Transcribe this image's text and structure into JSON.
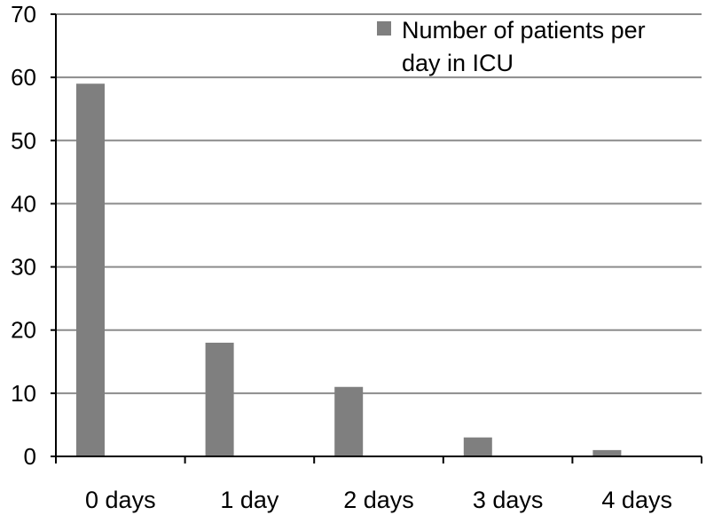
{
  "chart_data": {
    "type": "bar",
    "categories": [
      "0 days",
      "1 day",
      "2 days",
      "3 days",
      "4 days"
    ],
    "series": [
      {
        "name": "Number of patients per day in ICU",
        "values": [
          59,
          18,
          11,
          3,
          1
        ]
      }
    ],
    "ylim": [
      0,
      70
    ],
    "yticks": [
      "0",
      "10",
      "20",
      "30",
      "40",
      "50",
      "60",
      "70"
    ],
    "grid": true,
    "legend_position": "top-right",
    "legend_lines": [
      "Number of patients per",
      "day in ICU"
    ],
    "colors": {
      "bar": "#7f7f7f",
      "grid": "#8c8c8c",
      "axis": "#000000"
    }
  }
}
